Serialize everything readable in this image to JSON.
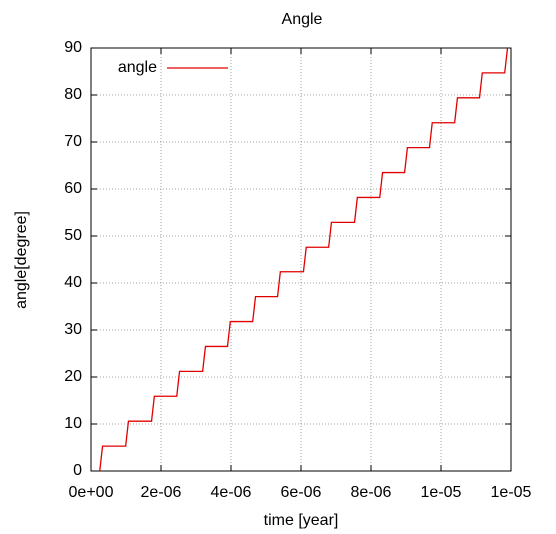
{
  "chart_data": {
    "type": "line",
    "title": "Angle",
    "x_label": "time [year]",
    "y_label": "angle[degree]",
    "x": [
      2.5e-07,
      3.3e-07,
      9.9e-07,
      1.07e-06,
      1.73e-06,
      1.81e-06,
      2.45e-06,
      2.53e-06,
      3.19e-06,
      3.27e-06,
      3.9e-06,
      3.98e-06,
      4.62e-06,
      4.7e-06,
      5.33e-06,
      5.41e-06,
      6.07e-06,
      6.15e-06,
      6.79e-06,
      6.87e-06,
      7.53e-06,
      7.61e-06,
      8.25e-06,
      8.33e-06,
      8.96e-06,
      9.04e-06,
      9.67e-06,
      9.75e-06,
      1.039e-05,
      1.047e-05,
      1.11e-05,
      1.118e-05,
      1.182e-05,
      1.19e-05
    ],
    "series": [
      {
        "name": "angle",
        "color": "#e00000",
        "values": [
          0,
          5.3,
          5.3,
          10.6,
          10.6,
          15.9,
          15.9,
          21.2,
          21.2,
          26.5,
          26.5,
          31.8,
          31.8,
          37.1,
          37.1,
          42.4,
          42.4,
          47.6,
          47.6,
          52.9,
          52.9,
          58.2,
          58.2,
          63.5,
          63.5,
          68.8,
          68.8,
          74.1,
          74.1,
          79.4,
          79.4,
          84.7,
          84.7,
          90
        ]
      }
    ],
    "xlim": [
      0,
      1.2e-05
    ],
    "xticks": [
      {
        "value": 0,
        "label": "0e+00"
      },
      {
        "value": 2e-06,
        "label": "2e-06"
      },
      {
        "value": 4e-06,
        "label": "4e-06"
      },
      {
        "value": 6e-06,
        "label": "6e-06"
      },
      {
        "value": 8e-06,
        "label": "8e-06"
      },
      {
        "value": 1e-05,
        "label": "1e-05"
      },
      {
        "value": 1.2e-05,
        "label": "1e-05"
      }
    ],
    "ylim": [
      0,
      90
    ],
    "yticks": [
      0,
      10,
      20,
      30,
      40,
      50,
      60,
      70,
      80,
      90
    ],
    "grid": true,
    "legend": "top-left"
  }
}
